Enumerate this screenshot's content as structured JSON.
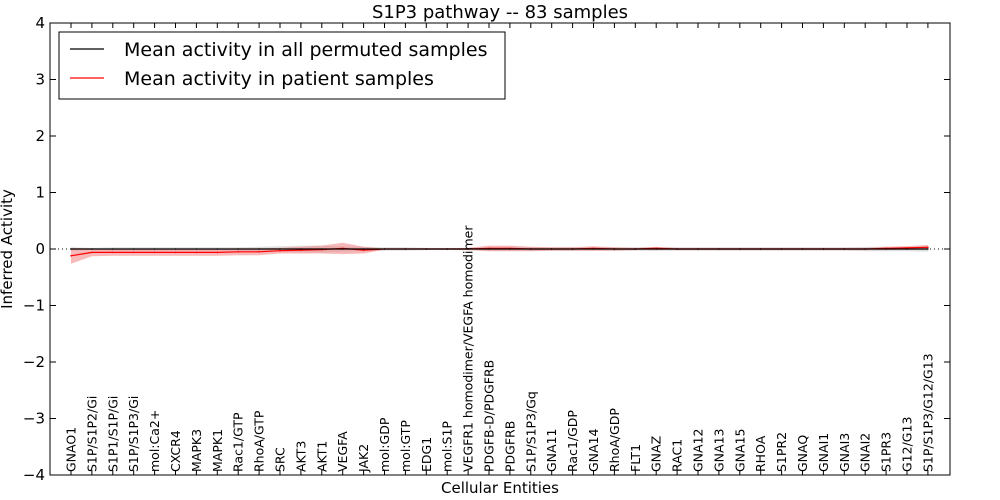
{
  "chart_data": {
    "type": "line",
    "title": "S1P3 pathway -- 83 samples",
    "xlabel": "Cellular Entities",
    "ylabel": "Inferred Activity",
    "ylim": [
      -4,
      4
    ],
    "yticks": [
      "4",
      "3",
      "2",
      "1",
      "0",
      "−1",
      "−2",
      "−3",
      "−4"
    ],
    "ytick_values": [
      4,
      3,
      2,
      1,
      0,
      -1,
      -2,
      -3,
      -4
    ],
    "legend_position": "top-left",
    "categories": [
      "GNAO1",
      "S1P/S1P2/Gi",
      "S1P1/S1P/Gi",
      "S1P/S1P3/Gi",
      "mol:Ca2+",
      "CXCR4",
      "MAPK3",
      "MAPK1",
      "Rac1/GTP",
      "RhoA/GTP",
      "SRC",
      "AKT3",
      "AKT1",
      "VEGFA",
      "JAK2",
      "mol:GDP",
      "mol:GTP",
      "EDG1",
      "mol:S1P",
      "VEGFR1 homodimer/VEGFA homodimer",
      "PDGFB-D/PDGFRB",
      "PDGFRB",
      "S1P/S1P3/Gq",
      "GNA11",
      "Rac1/GDP",
      "GNA14",
      "RhoA/GDP",
      "FLT1",
      "GNAZ",
      "RAC1",
      "GNA12",
      "GNA13",
      "GNA15",
      "RHOA",
      "S1PR2",
      "GNAQ",
      "GNAI1",
      "GNAI3",
      "GNAI2",
      "S1PR3",
      "G12/G13",
      "S1P/S1P3/G12/G13"
    ],
    "series": [
      {
        "name": "Mean activity in all permuted samples",
        "color": "#000000",
        "band_color": "#bbbbbb",
        "values": [
          0,
          0,
          0,
          0,
          0,
          0,
          0,
          0,
          0,
          0,
          0,
          0,
          0,
          0,
          0,
          0,
          0,
          0,
          0,
          0,
          0,
          0,
          0,
          0,
          0,
          0,
          0,
          0,
          0,
          0,
          0,
          0,
          0,
          0,
          0,
          0,
          0,
          0,
          0,
          0,
          0,
          0
        ],
        "band": [
          0.03,
          0.02,
          0.03,
          0.03,
          0.03,
          0.03,
          0.03,
          0.03,
          0.03,
          0.04,
          0.05,
          0.06,
          0.06,
          0.05,
          0.04,
          0.03,
          0.03,
          0.02,
          0.02,
          0.02,
          0.03,
          0.03,
          0.03,
          0.03,
          0.03,
          0.03,
          0.03,
          0.03,
          0.03,
          0.03,
          0.03,
          0.03,
          0.03,
          0.03,
          0.03,
          0.03,
          0.03,
          0.03,
          0.04,
          0.04,
          0.04,
          0.05
        ]
      },
      {
        "name": "Mean activity in patient samples",
        "color": "#ff0000",
        "band_color": "#f08080",
        "values": [
          -0.12,
          -0.06,
          -0.06,
          -0.06,
          -0.06,
          -0.06,
          -0.06,
          -0.06,
          -0.05,
          -0.05,
          -0.03,
          -0.02,
          -0.01,
          0.01,
          -0.02,
          0,
          0,
          0,
          0,
          0,
          0.01,
          0.01,
          0,
          0,
          0,
          0.01,
          0,
          0,
          0.01,
          0,
          0,
          0,
          0,
          0,
          0,
          0,
          0,
          0,
          0,
          0.01,
          0.02,
          0.03
        ],
        "band": [
          0.14,
          0.07,
          0.06,
          0.06,
          0.06,
          0.06,
          0.06,
          0.06,
          0.06,
          0.06,
          0.05,
          0.06,
          0.07,
          0.1,
          0.06,
          0.01,
          0.01,
          0.01,
          0.01,
          0.02,
          0.05,
          0.05,
          0.04,
          0.03,
          0.03,
          0.04,
          0.03,
          0.02,
          0.03,
          0.02,
          0.02,
          0.02,
          0.02,
          0.02,
          0.02,
          0.02,
          0.02,
          0.02,
          0.02,
          0.03,
          0.03,
          0.04
        ]
      }
    ]
  }
}
